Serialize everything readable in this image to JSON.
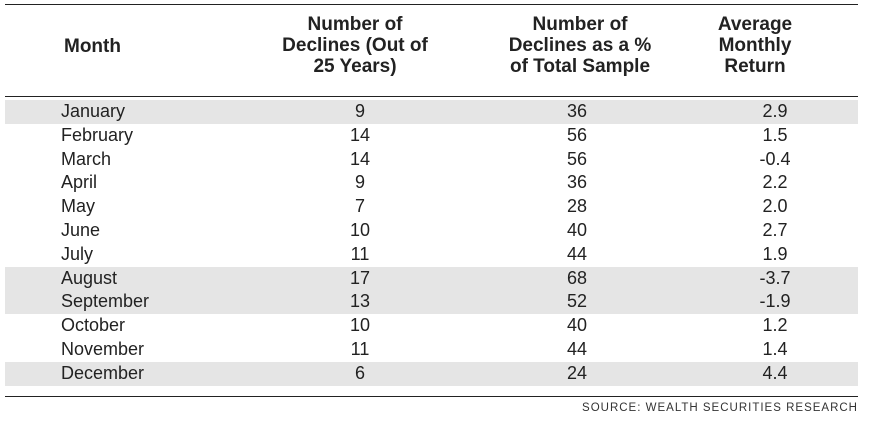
{
  "chart_data": {
    "type": "table",
    "columns": [
      "Month",
      "Number of Declines (Out of 25 Years)",
      "Number of Declines as a % of Total Sample",
      "Average Monthly Return"
    ],
    "header_lines": {
      "month": [
        "Month"
      ],
      "declines": [
        "Number of",
        "Declines (Out of",
        "25 Years)"
      ],
      "pct": [
        "Number of",
        "Declines as a %",
        "of Total Sample"
      ],
      "ret": [
        "Average",
        "Monthly",
        "Return"
      ]
    },
    "rows": [
      {
        "month": "January",
        "declines": "9",
        "pct": "36",
        "ret": "2.9",
        "shaded": true
      },
      {
        "month": "February",
        "declines": "14",
        "pct": "56",
        "ret": "1.5",
        "shaded": false
      },
      {
        "month": "March",
        "declines": "14",
        "pct": "56",
        "ret": "-0.4",
        "shaded": false
      },
      {
        "month": "April",
        "declines": "9",
        "pct": "36",
        "ret": "2.2",
        "shaded": false
      },
      {
        "month": "May",
        "declines": "7",
        "pct": "28",
        "ret": "2.0",
        "shaded": false
      },
      {
        "month": "June",
        "declines": "10",
        "pct": "40",
        "ret": "2.7",
        "shaded": false
      },
      {
        "month": "July",
        "declines": "11",
        "pct": "44",
        "ret": "1.9",
        "shaded": false
      },
      {
        "month": "August",
        "declines": "17",
        "pct": "68",
        "ret": "-3.7",
        "shaded": true
      },
      {
        "month": "September",
        "declines": "13",
        "pct": "52",
        "ret": "-1.9",
        "shaded": true
      },
      {
        "month": "October",
        "declines": "10",
        "pct": "40",
        "ret": "1.2",
        "shaded": false
      },
      {
        "month": "November",
        "declines": "11",
        "pct": "44",
        "ret": "1.4",
        "shaded": false
      },
      {
        "month": "December",
        "declines": "6",
        "pct": "24",
        "ret": "4.4",
        "shaded": true
      }
    ],
    "source": "SOURCE: WEALTH SECURITIES RESEARCH",
    "shade_color": "#e5e5e5"
  }
}
